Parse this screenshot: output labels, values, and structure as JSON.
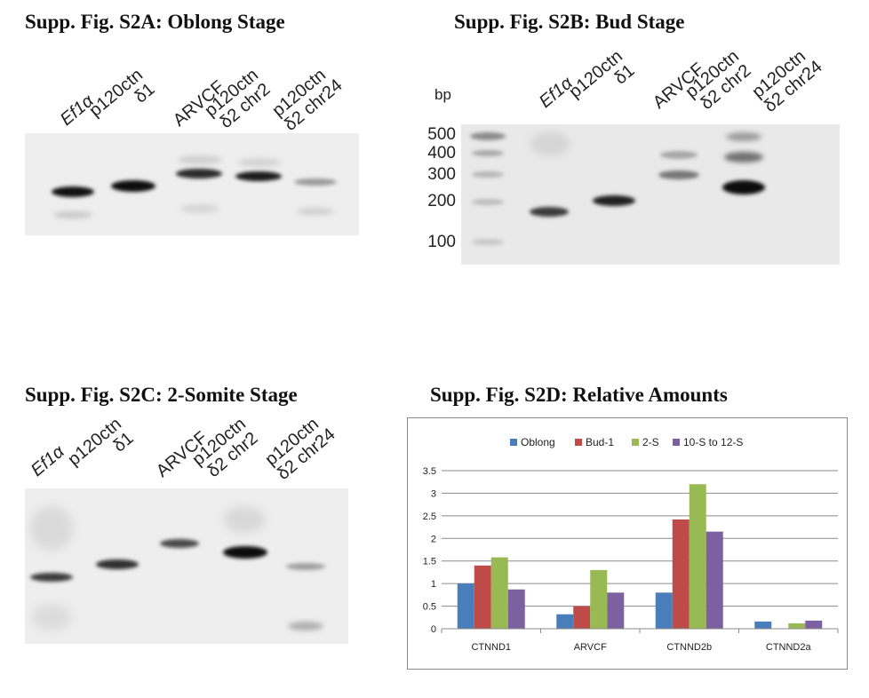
{
  "panels": {
    "a": {
      "title": "Supp. Fig. S2A: Oblong Stage",
      "lanes": [
        {
          "line1": "Ef1α",
          "line2": ""
        },
        {
          "line1": "p120ctn",
          "line2": "δ1"
        },
        {
          "line1": "ARVCF",
          "line2": ""
        },
        {
          "line1": "p120ctn",
          "line2": "δ2 chr2"
        },
        {
          "line1": "p120ctn",
          "line2": "δ2 chr24"
        }
      ]
    },
    "b": {
      "title": "Supp. Fig. S2B: Bud Stage",
      "bp_label": "bp",
      "ladder": [
        "500",
        "400",
        "300",
        "200",
        "100"
      ],
      "lanes": [
        {
          "line1": "Ef1α",
          "line2": ""
        },
        {
          "line1": "p120ctn",
          "line2": "δ1"
        },
        {
          "line1": "ARVCF",
          "line2": ""
        },
        {
          "line1": "p120ctn",
          "line2": "δ2 chr2"
        },
        {
          "line1": "p120ctn",
          "line2": "δ2 chr24"
        }
      ]
    },
    "c": {
      "title": "Supp. Fig. S2C: 2-Somite Stage",
      "lanes": [
        {
          "line1": "Ef1α",
          "line2": ""
        },
        {
          "line1": "p120ctn",
          "line2": "δ1"
        },
        {
          "line1": "ARVCF",
          "line2": ""
        },
        {
          "line1": "p120ctn",
          "line2": "δ2 chr2"
        },
        {
          "line1": "p120ctn",
          "line2": "δ2 chr24"
        }
      ]
    },
    "d": {
      "title": "Supp. Fig. S2D: Relative Amounts"
    }
  },
  "chart_data": {
    "type": "bar",
    "title": "",
    "xlabel": "",
    "ylabel": "",
    "categories": [
      "CTNND1",
      "ARVCF",
      "CTNND2b",
      "CTNND2a"
    ],
    "series": [
      {
        "name": "Oblong",
        "color": "#4a7ebb",
        "values": [
          1.0,
          0.32,
          0.8,
          0.16
        ]
      },
      {
        "name": "Bud-1",
        "color": "#be4b48",
        "values": [
          1.4,
          0.5,
          2.42,
          0.0
        ]
      },
      {
        "name": "2-S",
        "color": "#98b954",
        "values": [
          1.58,
          1.3,
          3.2,
          0.12
        ]
      },
      {
        "name": "10-S to 12-S",
        "color": "#7d60a0",
        "values": [
          0.87,
          0.8,
          2.15,
          0.18
        ]
      }
    ],
    "ylim": [
      0,
      3.5
    ],
    "yticks": [
      "0",
      "0.5",
      "1",
      "1.5",
      "2",
      "2.5",
      "3",
      "3.5"
    ],
    "grid": true,
    "legend": "top"
  }
}
